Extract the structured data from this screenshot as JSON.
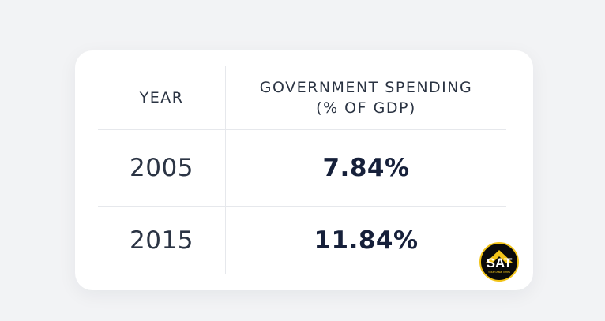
{
  "table": {
    "headers": {
      "year": "YEAR",
      "spending_line1": "GOVERNMENT SPENDING",
      "spending_line2": "(% OF GDP)"
    },
    "rows": [
      {
        "year": "2005",
        "value": "7.84%"
      },
      {
        "year": "2015",
        "value": "11.84%"
      }
    ]
  },
  "logo": {
    "icon": "sat-logo-icon",
    "text": "SAT",
    "subtext": "South Asia Times",
    "colors": {
      "background": "#0a0a0a",
      "accent": "#f2c419",
      "letters": "#ffffff"
    }
  },
  "colors": {
    "page_background": "#f2f3f5",
    "card_background": "#ffffff",
    "divider": "#e6e8ec",
    "header_text": "#2a3342",
    "value_text": "#16203a"
  }
}
